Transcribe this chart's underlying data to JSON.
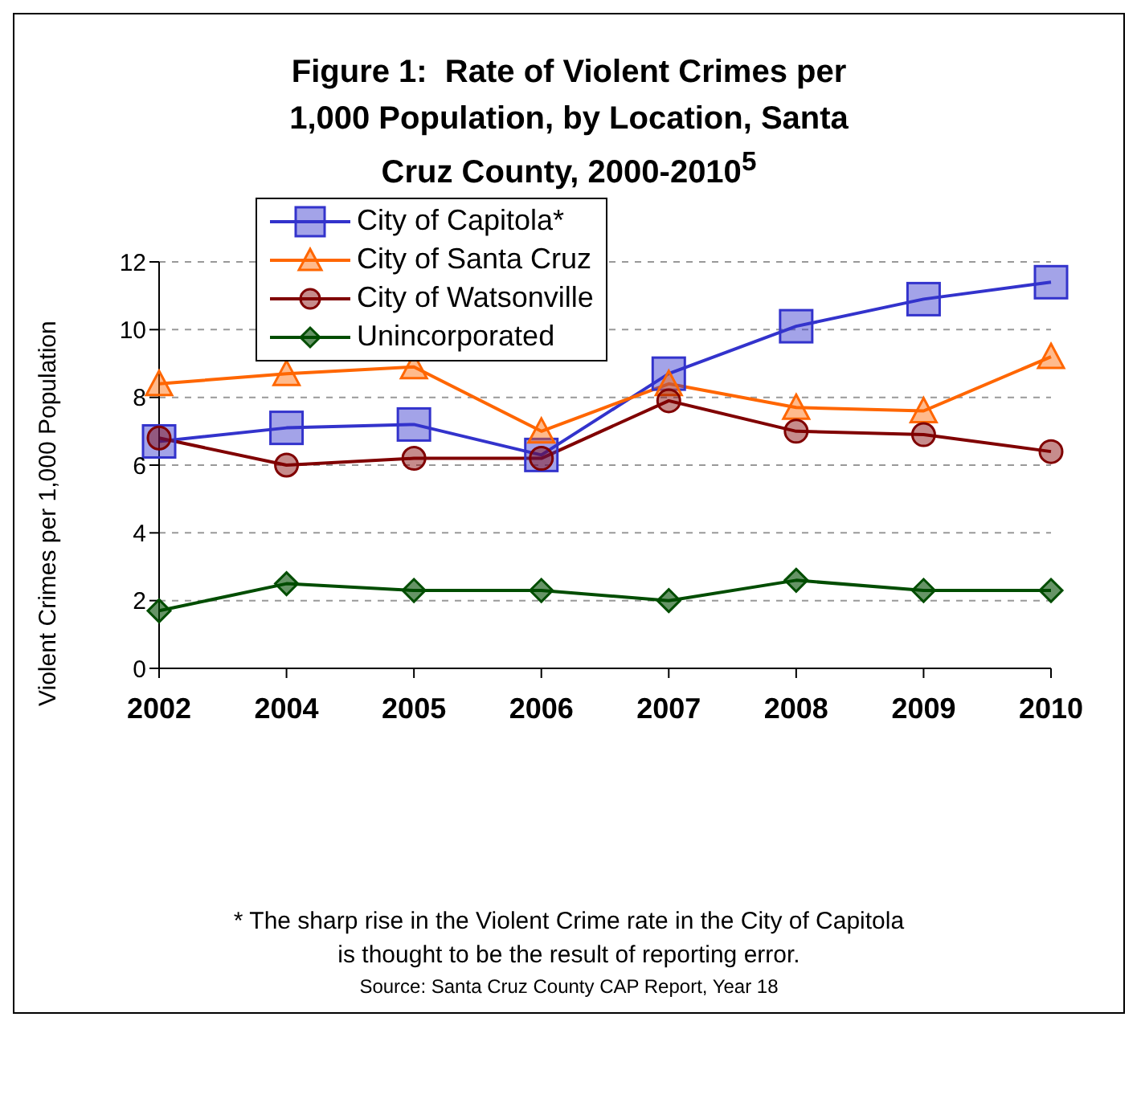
{
  "chart_data": {
    "type": "line",
    "title": "Figure 1:  Rate of Violent Crimes per 1,000 Population, by Location, Santa Cruz County, 2000-2010$^{5}$",
    "ylabel": "Violent Crimes per 1,000 Population",
    "categories": [
      "2002",
      "2004",
      "2005",
      "2006",
      "2007",
      "2008",
      "2009",
      "2010"
    ],
    "series": [
      {
        "name": "City of Capitola*",
        "color": "#3333cc",
        "marker": "square",
        "values": [
          6.7,
          7.1,
          7.2,
          6.3,
          8.7,
          10.1,
          10.9,
          11.4
        ]
      },
      {
        "name": "City of Santa Cruz",
        "color": "#ff6600",
        "marker": "triangle",
        "values": [
          8.4,
          8.7,
          8.9,
          7.0,
          8.4,
          7.7,
          7.6,
          9.2
        ]
      },
      {
        "name": "City of Watsonville",
        "color": "#800000",
        "marker": "circle",
        "values": [
          6.8,
          6.0,
          6.2,
          6.2,
          7.9,
          7.0,
          6.9,
          6.4
        ]
      },
      {
        "name": "Unincorporated",
        "color": "#004d00",
        "marker": "diamond",
        "values": [
          1.7,
          2.5,
          2.3,
          2.3,
          2.0,
          2.6,
          2.3,
          2.3
        ]
      }
    ],
    "ylim": [
      0,
      12
    ],
    "yticks": [
      0,
      2,
      4,
      6,
      8,
      10,
      12
    ],
    "grid": "y",
    "legend": "top left",
    "line_style": "solid",
    "annotations": [
      "* The sharp rise in the Violent Crime rate in the City of Capitola",
      "is thought to be the result of reporting error.",
      "Source:  Santa Cruz County CAP Report, Year 18"
    ]
  }
}
